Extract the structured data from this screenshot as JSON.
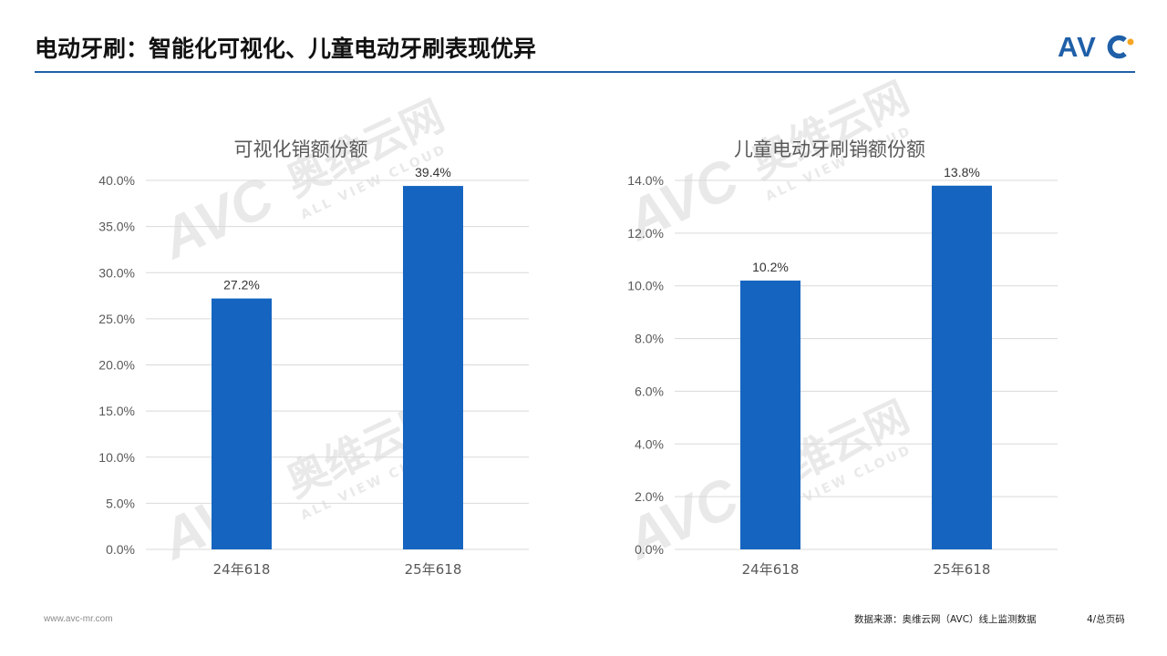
{
  "page": {
    "title": "电动牙刷：智能化可视化、儿童电动牙刷表现优异",
    "logo_text": "AVC",
    "watermark_cn": "奥维云网",
    "watermark_en": "ALL VIEW CLOUD",
    "accent_color": "#1f5fa8",
    "bar_color": "#1565c0"
  },
  "chart_data": [
    {
      "type": "bar",
      "title": "可视化销额份额",
      "categories": [
        "24年618",
        "25年618"
      ],
      "values": [
        27.2,
        39.4
      ],
      "value_labels": [
        "27.2%",
        "39.4%"
      ],
      "ylim": [
        0,
        40
      ],
      "yticks": [
        0,
        5,
        10,
        15,
        20,
        25,
        30,
        35,
        40
      ],
      "ytick_labels": [
        "0.0%",
        "5.0%",
        "10.0%",
        "15.0%",
        "20.0%",
        "25.0%",
        "30.0%",
        "35.0%",
        "40.0%"
      ],
      "grid": true,
      "xlabel": "",
      "ylabel": ""
    },
    {
      "type": "bar",
      "title": "儿童电动牙刷销额份额",
      "categories": [
        "24年618",
        "25年618"
      ],
      "values": [
        10.2,
        13.8
      ],
      "value_labels": [
        "10.2%",
        "13.8%"
      ],
      "ylim": [
        0,
        14
      ],
      "yticks": [
        0,
        2,
        4,
        6,
        8,
        10,
        12,
        14
      ],
      "ytick_labels": [
        "0.0%",
        "2.0%",
        "4.0%",
        "6.0%",
        "8.0%",
        "10.0%",
        "12.0%",
        "14.0%"
      ],
      "grid": true,
      "xlabel": "",
      "ylabel": ""
    }
  ],
  "footer": {
    "url": "www.avc-mr.com",
    "source": "数据来源：奥维云网（AVC）线上监测数据",
    "page_label": "4/总页码"
  }
}
